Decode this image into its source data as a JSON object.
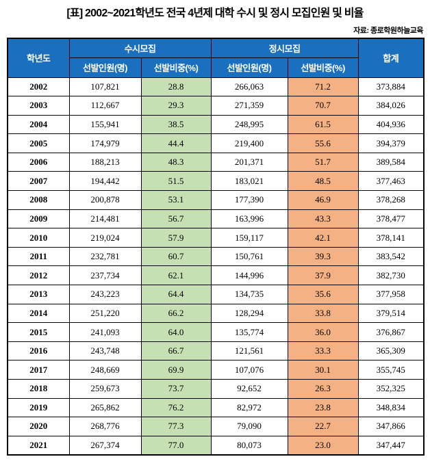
{
  "title": "[표] 2002~2021학년도 전국 4년제 대학 수시 및 정시 모집인원 및 비율",
  "source_note": "자료: 종로학원하늘교육",
  "colors": {
    "header_bg": "#1B6FBF",
    "susi_ratio_bg": "#C6E0B4",
    "jeongsi_ratio_bg": "#F4B183",
    "header_text": "#FFFFFF",
    "border": "#000000"
  },
  "chart_data": {
    "type": "table",
    "title": "[표] 2002~2021학년도 전국 4년제 대학 수시 및 정시 모집인원 및 비율",
    "source": "종로학원하늘교육",
    "header": {
      "year": "학년도",
      "susi_group": "수시모집",
      "jeongsi_group": "정시모집",
      "total": "합계",
      "count_label": "선발인원(명)",
      "ratio_label": "선발비중(%)"
    },
    "rows": [
      {
        "year": "2002",
        "susi_count": "107,821",
        "susi_ratio": "28.8",
        "jeongsi_count": "266,063",
        "jeongsi_ratio": "71.2",
        "total": "373,884"
      },
      {
        "year": "2003",
        "susi_count": "112,667",
        "susi_ratio": "29.3",
        "jeongsi_count": "271,359",
        "jeongsi_ratio": "70.7",
        "total": "384,026"
      },
      {
        "year": "2004",
        "susi_count": "155,941",
        "susi_ratio": "38.5",
        "jeongsi_count": "248,995",
        "jeongsi_ratio": "61.5",
        "total": "404,936"
      },
      {
        "year": "2005",
        "susi_count": "174,979",
        "susi_ratio": "44.4",
        "jeongsi_count": "219,400",
        "jeongsi_ratio": "55.6",
        "total": "394,379"
      },
      {
        "year": "2006",
        "susi_count": "188,213",
        "susi_ratio": "48.3",
        "jeongsi_count": "201,371",
        "jeongsi_ratio": "51.7",
        "total": "389,584"
      },
      {
        "year": "2007",
        "susi_count": "194,442",
        "susi_ratio": "51.5",
        "jeongsi_count": "183,021",
        "jeongsi_ratio": "48.5",
        "total": "377,463"
      },
      {
        "year": "2008",
        "susi_count": "200,878",
        "susi_ratio": "53.1",
        "jeongsi_count": "177,390",
        "jeongsi_ratio": "46.9",
        "total": "378,268"
      },
      {
        "year": "2009",
        "susi_count": "214,481",
        "susi_ratio": "56.7",
        "jeongsi_count": "163,996",
        "jeongsi_ratio": "43.3",
        "total": "378,477"
      },
      {
        "year": "2010",
        "susi_count": "219,024",
        "susi_ratio": "57.9",
        "jeongsi_count": "159,117",
        "jeongsi_ratio": "42.1",
        "total": "378,141"
      },
      {
        "year": "2011",
        "susi_count": "232,781",
        "susi_ratio": "60.7",
        "jeongsi_count": "150,761",
        "jeongsi_ratio": "39.3",
        "total": "383,542"
      },
      {
        "year": "2012",
        "susi_count": "237,734",
        "susi_ratio": "62.1",
        "jeongsi_count": "144,996",
        "jeongsi_ratio": "37.9",
        "total": "382,730"
      },
      {
        "year": "2013",
        "susi_count": "243,223",
        "susi_ratio": "64.4",
        "jeongsi_count": "134,735",
        "jeongsi_ratio": "35.6",
        "total": "377,958"
      },
      {
        "year": "2014",
        "susi_count": "251,220",
        "susi_ratio": "66.2",
        "jeongsi_count": "128,294",
        "jeongsi_ratio": "33.8",
        "total": "379,514"
      },
      {
        "year": "2015",
        "susi_count": "241,093",
        "susi_ratio": "64.0",
        "jeongsi_count": "135,774",
        "jeongsi_ratio": "36.0",
        "total": "376,867"
      },
      {
        "year": "2016",
        "susi_count": "243,748",
        "susi_ratio": "66.7",
        "jeongsi_count": "121,561",
        "jeongsi_ratio": "33.3",
        "total": "365,309"
      },
      {
        "year": "2017",
        "susi_count": "248,669",
        "susi_ratio": "69.9",
        "jeongsi_count": "107,076",
        "jeongsi_ratio": "30.1",
        "total": "355,745"
      },
      {
        "year": "2018",
        "susi_count": "259,673",
        "susi_ratio": "73.7",
        "jeongsi_count": "92,652",
        "jeongsi_ratio": "26.3",
        "total": "352,325"
      },
      {
        "year": "2019",
        "susi_count": "265,862",
        "susi_ratio": "76.2",
        "jeongsi_count": "82,972",
        "jeongsi_ratio": "23.8",
        "total": "348,834"
      },
      {
        "year": "2020",
        "susi_count": "268,776",
        "susi_ratio": "77.3",
        "jeongsi_count": "79,090",
        "jeongsi_ratio": "22.7",
        "total": "347,866"
      },
      {
        "year": "2021",
        "susi_count": "267,374",
        "susi_ratio": "77.0",
        "jeongsi_count": "80,073",
        "jeongsi_ratio": "23.0",
        "total": "347,447"
      }
    ]
  }
}
